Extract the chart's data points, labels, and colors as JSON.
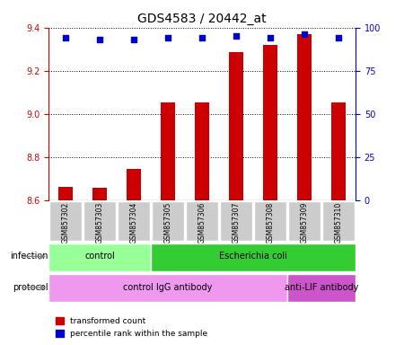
{
  "title": "GDS4583 / 20442_at",
  "samples": [
    "GSM857302",
    "GSM857303",
    "GSM857304",
    "GSM857305",
    "GSM857306",
    "GSM857307",
    "GSM857308",
    "GSM857309",
    "GSM857310"
  ],
  "transformed_counts": [
    8.663,
    8.657,
    8.745,
    9.055,
    9.055,
    9.285,
    9.32,
    9.37,
    9.055
  ],
  "percentile_ranks": [
    94,
    93,
    93,
    94,
    94,
    95,
    94,
    96,
    94
  ],
  "ylim_left": [
    8.6,
    9.4
  ],
  "ylim_right": [
    0,
    100
  ],
  "yticks_left": [
    8.6,
    8.8,
    9.0,
    9.2,
    9.4
  ],
  "yticks_right": [
    0,
    25,
    50,
    75,
    100
  ],
  "bar_color": "#cc0000",
  "dot_color": "#0000cc",
  "bar_bottom": 8.6,
  "infection_labels": [
    {
      "text": "control",
      "start": 0,
      "end": 3,
      "color": "#99ff99"
    },
    {
      "text": "Escherichia coli",
      "start": 3,
      "end": 9,
      "color": "#33cc33"
    }
  ],
  "protocol_labels": [
    {
      "text": "control IgG antibody",
      "start": 0,
      "end": 7,
      "color": "#ee99ee"
    },
    {
      "text": "anti-LIF antibody",
      "start": 7,
      "end": 9,
      "color": "#cc55cc"
    }
  ],
  "infection_row_label": "infection",
  "protocol_row_label": "protocol",
  "legend_items": [
    {
      "color": "#cc0000",
      "label": "transformed count"
    },
    {
      "color": "#0000cc",
      "label": "percentile rank within the sample"
    }
  ],
  "grid_color": "#000000",
  "tick_color_left": "#cc0000",
  "tick_color_right": "#0000cc",
  "bar_width": 0.4,
  "xticklabel_color": "#333333",
  "sample_box_color": "#cccccc"
}
